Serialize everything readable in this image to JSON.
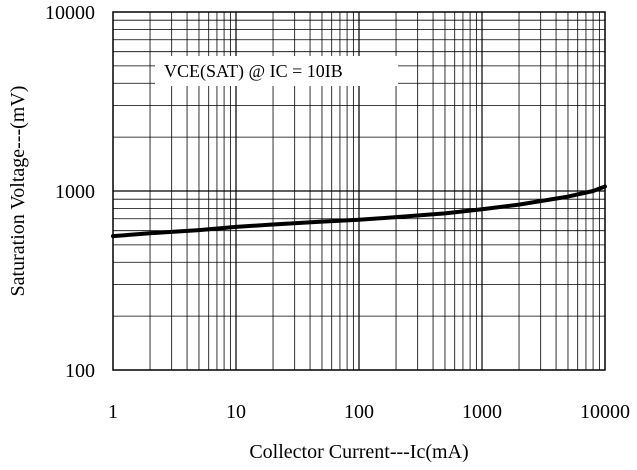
{
  "chart_data": {
    "type": "line",
    "title": "",
    "xlabel": "Collector Current---Ic(mA)",
    "ylabel": "Saturation Voltage---(mV)",
    "x_scale": "log",
    "y_scale": "log",
    "xlim": [
      1,
      10000
    ],
    "ylim": [
      100,
      10000
    ],
    "grid": true,
    "x_ticks": [
      "1",
      "10",
      "100",
      "1000",
      "10000"
    ],
    "y_ticks": [
      "100",
      "1000",
      "10000"
    ],
    "annotation": "VCE(SAT) @ IC = 10IB",
    "series": [
      {
        "x": [
          1,
          2,
          5,
          10,
          20,
          50,
          100,
          200,
          500,
          1000,
          2000,
          5000,
          8000,
          10000
        ],
        "y": [
          560,
          580,
          605,
          630,
          650,
          675,
          690,
          715,
          750,
          790,
          840,
          930,
          1000,
          1060
        ]
      }
    ]
  }
}
